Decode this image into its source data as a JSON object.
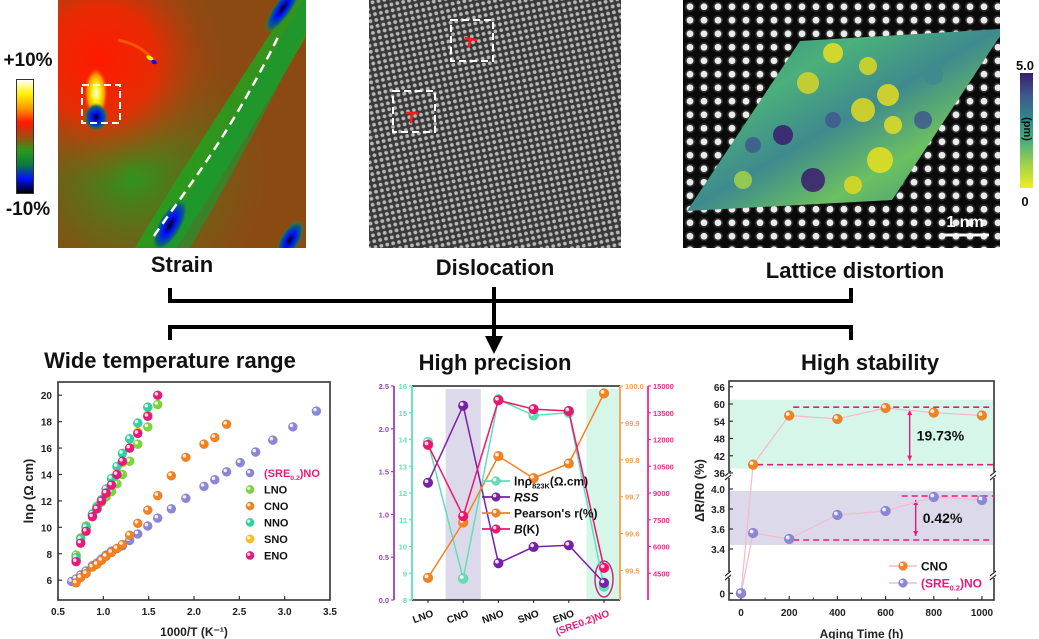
{
  "top_panels": {
    "strain": {
      "label": "Strain",
      "colorbar_max": "+10%",
      "colorbar_min": "-10%",
      "colorbar_stops": [
        "#ffffff",
        "#fff200",
        "#ff9900",
        "#ff1a00",
        "#a34a12",
        "#2a9a1a",
        "#0a7a40",
        "#0010ff",
        "#000000"
      ],
      "background_color": "#8b4a12"
    },
    "dislocation": {
      "label": "Dislocation",
      "marker_color": "#ff1a1a",
      "marker_symbol": "⊥"
    },
    "lattice": {
      "label": "Lattice distortion",
      "colorbar_max": "5.0",
      "colorbar_min": "0",
      "colorbar_unit": "(pm)",
      "colorbar_stops": [
        "#3b1c6e",
        "#3e5b8e",
        "#2e8a8a",
        "#4bb07a",
        "#a4d24a",
        "#f0ee20"
      ],
      "scale_bar_label": "1 nm"
    }
  },
  "connector": {
    "arrow_color": "#000000"
  },
  "chart_data": [
    {
      "type": "scatter",
      "title": "Wide temperature range",
      "xlabel": "1000/T (K⁻¹)",
      "ylabel": "lnρ (Ω cm)",
      "xlim": [
        0.5,
        3.5
      ],
      "ylim": [
        4.5,
        21
      ],
      "xticks": [
        "0.5",
        "1.0",
        "1.5",
        "2.0",
        "2.5",
        "3.0",
        "3.5"
      ],
      "xtick_values": [
        0.5,
        1.0,
        1.5,
        2.0,
        2.5,
        3.0,
        3.5
      ],
      "yticks": [
        "6",
        "8",
        "10",
        "12",
        "14",
        "16",
        "18",
        "20"
      ],
      "ytick_values": [
        6,
        8,
        10,
        12,
        14,
        16,
        18,
        20
      ],
      "legend_position": "bottom-right",
      "series": [
        {
          "name": "(SRE0.2)NO",
          "label_main": "(SRE",
          "label_sub": "0.2",
          "label_tail": ")NO",
          "label_color": "#e8197c",
          "color": "#8c86d6",
          "x": [
            0.65,
            0.7,
            0.75,
            0.81,
            0.88,
            0.93,
            0.98,
            1.03,
            1.09,
            1.15,
            1.21,
            1.29,
            1.38,
            1.49,
            1.6,
            1.75,
            1.91,
            2.11,
            2.23,
            2.36,
            2.51,
            2.68,
            2.87,
            3.09,
            3.35
          ],
          "y": [
            5.9,
            6.1,
            6.4,
            6.7,
            7.1,
            7.3,
            7.6,
            7.9,
            8.2,
            8.4,
            8.6,
            9.0,
            9.5,
            10.1,
            10.7,
            11.4,
            12.2,
            13.1,
            13.6,
            14.2,
            14.9,
            15.7,
            16.6,
            17.6,
            18.8
          ]
        },
        {
          "name": "LNO",
          "label_color": "#111111",
          "color": "#7cd63a",
          "x": [
            0.7,
            0.75,
            0.81,
            0.88,
            0.93,
            0.98,
            1.03,
            1.09,
            1.15,
            1.21,
            1.29,
            1.38,
            1.49,
            1.6
          ],
          "y": [
            7.9,
            9.2,
            10.1,
            11.0,
            11.6,
            11.9,
            12.3,
            12.7,
            13.3,
            14.0,
            15.0,
            16.3,
            17.6,
            19.3
          ]
        },
        {
          "name": "CNO",
          "label_color": "#111111",
          "color": "#f58220",
          "x": [
            0.7,
            0.75,
            0.81,
            0.88,
            0.93,
            0.98,
            1.03,
            1.09,
            1.15,
            1.21,
            1.29,
            1.38,
            1.49,
            1.6,
            1.75,
            1.91,
            2.11,
            2.23,
            2.36
          ],
          "y": [
            5.8,
            6.2,
            6.5,
            7.0,
            7.2,
            7.5,
            7.8,
            8.1,
            8.4,
            8.7,
            9.4,
            10.3,
            11.3,
            12.4,
            13.9,
            15.3,
            16.3,
            16.8,
            17.8
          ]
        },
        {
          "name": "NNO",
          "label_color": "#111111",
          "color": "#2ed3a0",
          "x": [
            0.7,
            0.75,
            0.81,
            0.88,
            0.93,
            0.98,
            1.03,
            1.09,
            1.15,
            1.21,
            1.29,
            1.38,
            1.49
          ],
          "y": [
            7.7,
            9.1,
            10.0,
            11.0,
            11.5,
            12.1,
            12.9,
            13.7,
            14.6,
            15.6,
            16.7,
            17.9,
            19.1
          ]
        },
        {
          "name": "SNO",
          "label_color": "#111111",
          "color": "#ffbf1a",
          "x": [
            0.7,
            0.75,
            0.81,
            0.88,
            0.93,
            0.98,
            1.03,
            1.09,
            1.15,
            1.21,
            1.29,
            1.38,
            1.49
          ],
          "y": [
            7.5,
            8.9,
            9.8,
            10.9,
            11.4,
            12.0,
            12.6,
            13.2,
            14.0,
            14.9,
            16.0,
            17.2,
            18.5
          ]
        },
        {
          "name": "ENO",
          "label_color": "#111111",
          "color": "#e8197c",
          "x": [
            0.7,
            0.75,
            0.81,
            0.88,
            0.93,
            0.98,
            1.03,
            1.09,
            1.15,
            1.21,
            1.29,
            1.38,
            1.49,
            1.6
          ],
          "y": [
            7.4,
            8.8,
            9.7,
            10.8,
            11.4,
            12.0,
            12.6,
            13.2,
            14.0,
            15.0,
            16.0,
            17.1,
            18.4,
            20.0
          ]
        }
      ]
    },
    {
      "type": "line",
      "title": "High precision",
      "categories": [
        "LNO",
        "CNO",
        "NNO",
        "SNO",
        "ENO",
        "(SRE0.2)NO"
      ],
      "category_colors": [
        "#111111",
        "#111111",
        "#111111",
        "#111111",
        "#111111",
        "#e8197c"
      ],
      "highlight_bands": [
        {
          "category": "CNO",
          "color": "#dcdaea"
        },
        {
          "category": "(SRE0.2)NO",
          "color": "#d6f6ea"
        }
      ],
      "highlight_ellipse_category": "(SRE0.2)NO",
      "axes": [
        {
          "id": "rss",
          "side": "left-outer",
          "color": "#9b3fc4",
          "range": [
            0,
            2.5
          ],
          "ticks": [
            "0.0",
            "0.5",
            "1.0",
            "1.5",
            "2.0",
            "2.5"
          ],
          "tick_values": [
            0,
            0.5,
            1.0,
            1.5,
            2.0,
            2.5
          ]
        },
        {
          "id": "lnrho",
          "side": "left-inner",
          "color": "#5fe0b8",
          "range": [
            8,
            16
          ],
          "ticks": [
            "8",
            "9",
            "10",
            "11",
            "12",
            "13",
            "14",
            "15",
            "16"
          ],
          "tick_values": [
            8,
            9,
            10,
            11,
            12,
            13,
            14,
            15,
            16
          ]
        },
        {
          "id": "pearson",
          "side": "right-inner",
          "color": "#f5a04a",
          "range": [
            99.42,
            100.0
          ],
          "ticks": [
            "99.5",
            "99.6",
            "99.7",
            "99.8",
            "99.9",
            "100.0"
          ],
          "tick_values": [
            99.5,
            99.6,
            99.7,
            99.8,
            99.9,
            100.0
          ]
        },
        {
          "id": "b",
          "side": "right-outer",
          "color": "#f0298a",
          "range": [
            3000,
            15000
          ],
          "ticks": [
            "4500",
            "6000",
            "7500",
            "9000",
            "10500",
            "12000",
            "13500",
            "15000"
          ],
          "tick_values": [
            4500,
            6000,
            7500,
            9000,
            10500,
            12000,
            13500,
            15000
          ]
        }
      ],
      "series": [
        {
          "name": "lnρ823K(Ω.cm)",
          "label_main": "lnρ",
          "label_sub": "823K",
          "label_tail": "(Ω.cm)",
          "axis": "lnrho",
          "color": "#5fe0b8",
          "values": [
            13.9,
            8.8,
            15.5,
            14.9,
            15.0,
            8.5
          ]
        },
        {
          "name": "RSS",
          "label_main": "RSS",
          "italic": true,
          "axis": "rss",
          "color": "#7a1fa8",
          "values": [
            1.37,
            2.27,
            0.43,
            0.62,
            0.64,
            0.2
          ]
        },
        {
          "name": "Pearson's r(%)",
          "label_main": "Pearson's r(%)",
          "axis": "pearson",
          "color": "#f58220",
          "values": [
            99.48,
            99.63,
            99.81,
            99.75,
            99.79,
            99.98
          ]
        },
        {
          "name": "B(K)",
          "label_main": "B",
          "italic_main": true,
          "label_tail": "(K)",
          "axis": "b",
          "color": "#f0146e",
          "values": [
            11700,
            7700,
            14200,
            13700,
            13600,
            4800
          ]
        }
      ]
    },
    {
      "type": "line",
      "title": "High stability",
      "xlabel": "Aging Time (h)",
      "ylabel": "ΔR/R0 (%)",
      "xlim": [
        -50,
        1050
      ],
      "xticks": [
        "0",
        "200",
        "400",
        "600",
        "800",
        "1000"
      ],
      "xtick_values": [
        0,
        200,
        400,
        600,
        800,
        1000
      ],
      "broken_y_axis": true,
      "y_segments": [
        {
          "range": [
            36,
            68
          ],
          "ticks": [
            "36",
            "42",
            "48",
            "54",
            "60",
            "66"
          ],
          "tick_values": [
            36,
            42,
            48,
            54,
            60,
            66
          ]
        },
        {
          "range": [
            3.2,
            4.1
          ],
          "ticks": [
            "3.4",
            "3.6",
            "3.8",
            "4.0"
          ],
          "tick_values": [
            3.4,
            3.6,
            3.8,
            4.0
          ]
        },
        {
          "range": [
            -0.5,
            1
          ],
          "ticks": [
            "0"
          ],
          "tick_values": [
            0
          ]
        }
      ],
      "bands": [
        {
          "segment": 0,
          "range": [
            37.5,
            61.5
          ],
          "color": "#d6f6ea"
        },
        {
          "segment": 1,
          "range": [
            3.44,
            3.98
          ],
          "color": "#dcdaea"
        }
      ],
      "annotations": [
        {
          "text": "19.73%",
          "segment": 0,
          "from": 38.9,
          "to": 59.3,
          "x": 700
        },
        {
          "text": "0.42%",
          "segment": 1,
          "from": 3.49,
          "to": 3.93,
          "x": 725
        }
      ],
      "legend_position": "bottom-right",
      "series": [
        {
          "name": "CNO",
          "label_color": "#111111",
          "color": "#f58220",
          "line_color": "#f7b8cf",
          "x": [
            0,
            50,
            200,
            400,
            600,
            800,
            1000
          ],
          "y": [
            0,
            38.9,
            56.0,
            54.8,
            58.6,
            57.0,
            56.0
          ]
        },
        {
          "name": "(SRE0.2)NO",
          "label_main": "(SRE",
          "label_sub": "0.2",
          "label_tail": ")NO",
          "label_color": "#e8197c",
          "color": "#8c86d6",
          "line_color": "#f7b8cf",
          "x": [
            0,
            50,
            200,
            400,
            600,
            800,
            1000
          ],
          "y": [
            0,
            3.56,
            3.5,
            3.74,
            3.78,
            3.92,
            3.89
          ]
        }
      ]
    }
  ]
}
